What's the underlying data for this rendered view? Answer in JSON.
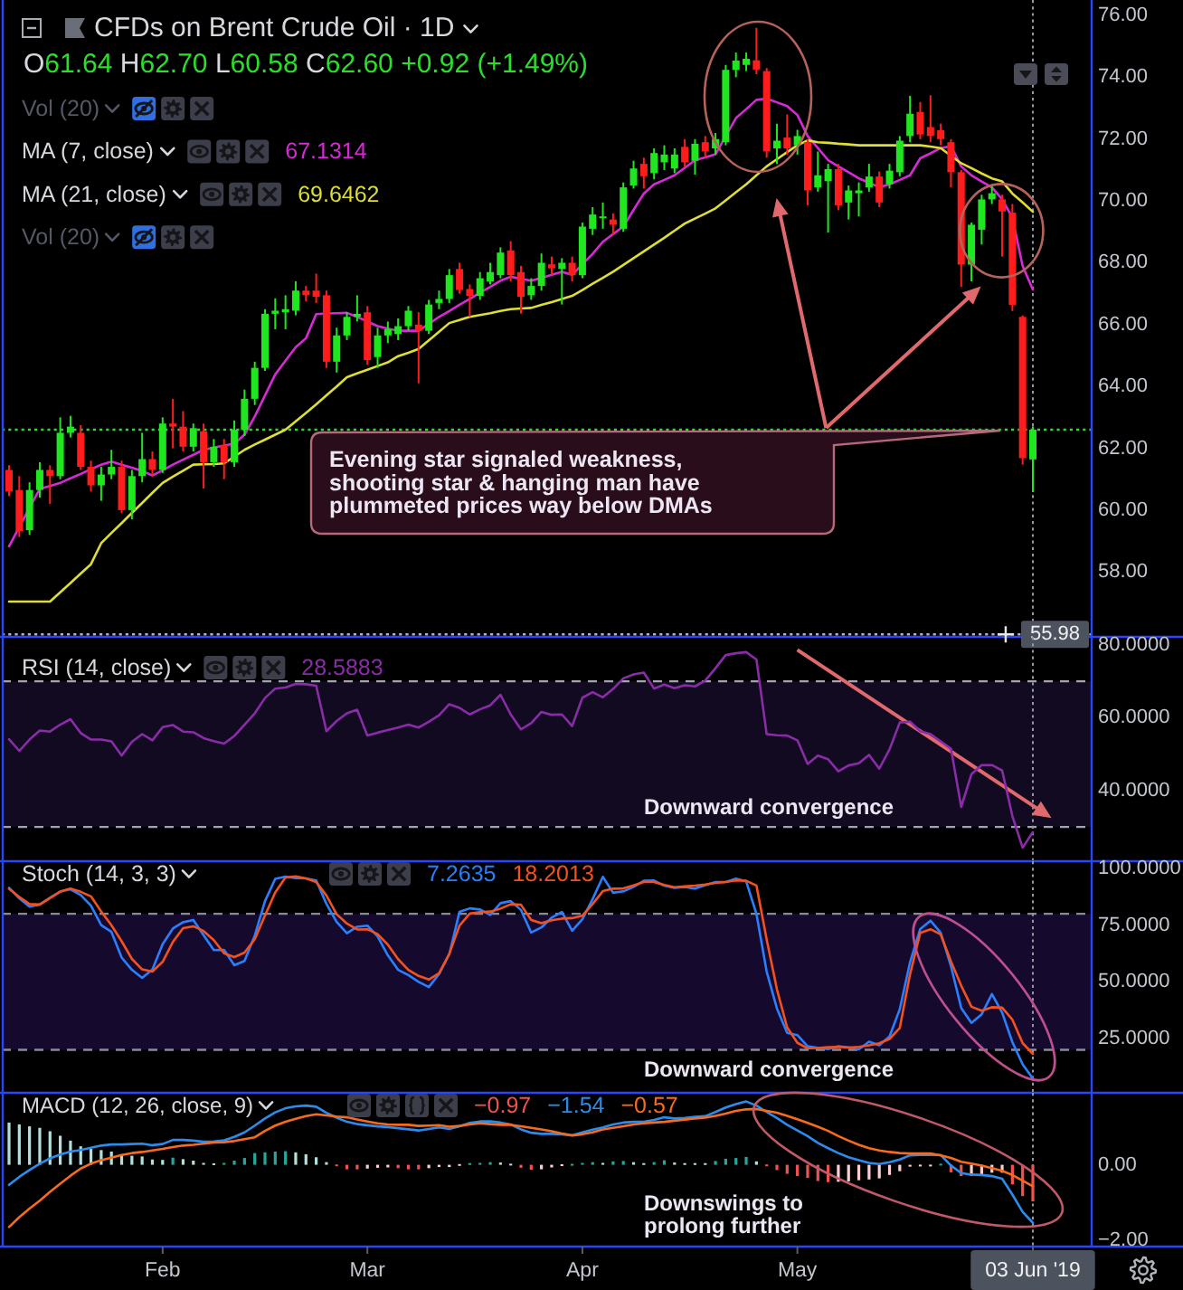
{
  "chart_data": [
    {
      "type": "candlestick",
      "title": "CFDs on Brent Crude Oil · 1D",
      "subtitle": "O61.64 H62.70 L60.58 C62.60 +0.92 (+1.49%)",
      "tick_labels": "y",
      "categories": [
        null,
        null,
        null,
        null,
        null,
        null,
        null,
        null,
        null,
        null,
        null,
        null,
        null,
        null,
        null,
        "Feb",
        null,
        null,
        null,
        null,
        null,
        null,
        null,
        null,
        null,
        null,
        null,
        null,
        null,
        null,
        null,
        null,
        null,
        null,
        null,
        "Mar",
        null,
        null,
        null,
        null,
        null,
        null,
        null,
        null,
        null,
        null,
        null,
        null,
        null,
        null,
        null,
        null,
        null,
        null,
        null,
        null,
        "Apr",
        null,
        null,
        null,
        null,
        null,
        null,
        null,
        null,
        null,
        null,
        null,
        null,
        null,
        null,
        null,
        null,
        null,
        null,
        null,
        null,
        "May",
        null,
        null,
        null,
        null,
        null,
        null,
        null,
        null,
        null,
        null,
        null,
        null,
        null,
        null,
        null,
        null,
        null,
        null,
        null,
        null,
        null,
        null,
        "03 Jun '19"
      ],
      "ohlc": [
        [
          61.3,
          61.45,
          60.45,
          60.6
        ],
        [
          60.65,
          61.1,
          59.13,
          59.32
        ],
        [
          59.35,
          60.9,
          59.2,
          60.65
        ],
        [
          60.65,
          61.55,
          60.4,
          61.3
        ],
        [
          61.3,
          61.45,
          60.2,
          61.1
        ],
        [
          61.1,
          63.0,
          61.0,
          62.5
        ],
        [
          62.5,
          63.05,
          62.35,
          62.7
        ],
        [
          62.5,
          62.75,
          61.3,
          61.4
        ],
        [
          61.4,
          61.6,
          60.6,
          60.8
        ],
        [
          60.8,
          61.4,
          60.3,
          61.15
        ],
        [
          61.15,
          61.95,
          61.0,
          61.4
        ],
        [
          61.4,
          61.6,
          59.9,
          60.0
        ],
        [
          60.0,
          61.3,
          59.7,
          61.1
        ],
        [
          61.1,
          62.5,
          60.9,
          61.65
        ],
        [
          61.65,
          61.9,
          61.1,
          61.3
        ],
        [
          61.3,
          63.0,
          61.2,
          62.8
        ],
        [
          62.8,
          63.6,
          62.0,
          62.7
        ],
        [
          62.7,
          63.2,
          61.9,
          62.05
        ],
        [
          62.05,
          62.8,
          61.9,
          62.65
        ],
        [
          62.55,
          62.8,
          60.7,
          61.55
        ],
        [
          61.55,
          62.3,
          61.4,
          62.05
        ],
        [
          62.1,
          62.3,
          61.0,
          61.55
        ],
        [
          61.55,
          62.9,
          61.4,
          62.6
        ],
        [
          62.6,
          63.9,
          62.4,
          63.6
        ],
        [
          63.6,
          64.8,
          63.4,
          64.6
        ],
        [
          64.6,
          66.5,
          64.5,
          66.35
        ],
        [
          66.35,
          66.85,
          65.85,
          66.45
        ],
        [
          66.4,
          66.95,
          65.85,
          66.5
        ],
        [
          66.45,
          67.4,
          66.3,
          67.1
        ],
        [
          67.1,
          67.25,
          66.75,
          66.95
        ],
        [
          67.1,
          67.65,
          66.7,
          66.9
        ],
        [
          66.95,
          67.1,
          64.6,
          64.8
        ],
        [
          64.8,
          65.9,
          64.45,
          65.65
        ],
        [
          65.65,
          66.4,
          65.5,
          66.25
        ],
        [
          66.25,
          66.95,
          66.1,
          66.35
        ],
        [
          66.4,
          66.6,
          64.7,
          64.85
        ],
        [
          64.95,
          65.9,
          64.6,
          65.65
        ],
        [
          65.65,
          66.1,
          65.4,
          65.85
        ],
        [
          65.7,
          66.2,
          65.5,
          65.95
        ],
        [
          65.95,
          66.6,
          65.8,
          66.45
        ],
        [
          66.0,
          66.4,
          64.1,
          65.8
        ],
        [
          65.8,
          66.8,
          65.7,
          66.65
        ],
        [
          66.7,
          67.1,
          66.5,
          66.83
        ],
        [
          66.83,
          67.8,
          66.7,
          67.6
        ],
        [
          67.8,
          68.0,
          67.0,
          67.12
        ],
        [
          67.15,
          67.3,
          66.25,
          66.93
        ],
        [
          66.93,
          67.7,
          66.8,
          67.5
        ],
        [
          67.4,
          68.0,
          67.3,
          67.7
        ],
        [
          67.6,
          68.5,
          67.5,
          68.33
        ],
        [
          68.4,
          68.7,
          67.4,
          67.6
        ],
        [
          67.7,
          67.9,
          66.35,
          66.9
        ],
        [
          66.95,
          67.5,
          66.8,
          67.25
        ],
        [
          67.25,
          68.3,
          67.1,
          68.0
        ],
        [
          67.95,
          68.2,
          67.6,
          67.82
        ],
        [
          67.8,
          68.15,
          66.65,
          68.0
        ],
        [
          68.0,
          68.2,
          67.4,
          67.6
        ],
        [
          67.6,
          69.3,
          67.5,
          69.17
        ],
        [
          69.1,
          69.8,
          68.9,
          69.56
        ],
        [
          69.45,
          69.95,
          69.1,
          69.5
        ],
        [
          69.4,
          69.6,
          68.9,
          69.23
        ],
        [
          69.1,
          70.6,
          69.0,
          70.44
        ],
        [
          70.5,
          71.3,
          70.4,
          71.05
        ],
        [
          71.2,
          71.4,
          70.4,
          70.8
        ],
        [
          70.9,
          71.7,
          70.7,
          71.55
        ],
        [
          71.25,
          71.8,
          71.0,
          71.5
        ],
        [
          71.05,
          71.7,
          70.9,
          71.5
        ],
        [
          71.75,
          72.0,
          71.1,
          71.25
        ],
        [
          71.3,
          72.0,
          70.85,
          71.85
        ],
        [
          71.9,
          72.1,
          71.4,
          71.6
        ],
        [
          71.7,
          72.2,
          71.5,
          72.0
        ],
        [
          71.9,
          74.4,
          71.8,
          74.24
        ],
        [
          74.24,
          74.8,
          74.0,
          74.54
        ],
        [
          74.4,
          74.8,
          74.2,
          74.6
        ],
        [
          74.55,
          75.6,
          74.1,
          74.25
        ],
        [
          74.2,
          74.3,
          71.4,
          71.6
        ],
        [
          71.7,
          72.5,
          71.2,
          71.95
        ],
        [
          72.05,
          72.8,
          71.5,
          71.7
        ],
        [
          71.8,
          72.3,
          71.5,
          72.1
        ],
        [
          71.9,
          72.0,
          69.86,
          70.34
        ],
        [
          70.44,
          71.6,
          70.3,
          70.83
        ],
        [
          70.64,
          71.2,
          68.98,
          71.03
        ],
        [
          71.03,
          71.2,
          69.7,
          69.86
        ],
        [
          69.95,
          70.5,
          69.4,
          70.34
        ],
        [
          70.25,
          70.6,
          69.5,
          70.34
        ],
        [
          70.44,
          71.2,
          70.3,
          70.79
        ],
        [
          70.79,
          70.95,
          69.8,
          69.95
        ],
        [
          70.54,
          71.2,
          70.4,
          70.98
        ],
        [
          70.93,
          72.1,
          70.8,
          71.95
        ],
        [
          72.1,
          73.4,
          71.9,
          72.82
        ],
        [
          72.88,
          73.2,
          72.0,
          72.15
        ],
        [
          72.39,
          73.42,
          71.9,
          72.1
        ],
        [
          72.29,
          72.5,
          71.8,
          72.0
        ],
        [
          71.9,
          72.0,
          70.44,
          70.93
        ],
        [
          70.93,
          71.0,
          67.22,
          67.94
        ],
        [
          67.94,
          69.3,
          67.4,
          69.23
        ],
        [
          69.07,
          70.2,
          68.59,
          70.05
        ],
        [
          70.05,
          70.54,
          69.9,
          70.25
        ],
        [
          70.05,
          70.2,
          68.2,
          69.66
        ],
        [
          69.62,
          69.9,
          66.44,
          66.64
        ],
        [
          66.25,
          66.3,
          61.47,
          61.68
        ],
        [
          61.64,
          62.7,
          60.58,
          62.6
        ]
      ],
      "colors": [
        "#ff1c1c",
        "#ff1c1c",
        "#20e620",
        "#20e620",
        "#ff1c1c",
        "#20e620",
        "#20e620",
        "#ff1c1c",
        "#ff1c1c",
        "#20e620",
        "#20e620",
        "#ff1c1c",
        "#20e620",
        "#20e620",
        "#ff1c1c",
        "#20e620",
        "#ff1c1c",
        "#ff1c1c",
        "#20e620",
        "#ff1c1c",
        "#20e620",
        "#ff1c1c",
        "#20e620",
        "#20e620",
        "#20e620",
        "#20e620",
        "#20e620",
        "#20e620",
        "#20e620",
        "#ff1c1c",
        "#ff1c1c",
        "#ff1c1c",
        "#20e620",
        "#20e620",
        "#20e620",
        "#ff1c1c",
        "#20e620",
        "#20e620",
        "#20e620",
        "#20e620",
        "#ff1c1c",
        "#20e620",
        "#20e620",
        "#20e620",
        "#ff1c1c",
        "#ff1c1c",
        "#20e620",
        "#20e620",
        "#20e620",
        "#ff1c1c",
        "#ff1c1c",
        "#20e620",
        "#20e620",
        "#ff1c1c",
        "#20e620",
        "#ff1c1c",
        "#20e620",
        "#20e620",
        "#20e620",
        "#ff1c1c",
        "#20e620",
        "#20e620",
        "#ff1c1c",
        "#20e620",
        "#20e620",
        "#20e620",
        "#ff1c1c",
        "#20e620",
        "#ff1c1c",
        "#20e620",
        "#20e620",
        "#20e620",
        "#20e620",
        "#ff1c1c",
        "#ff1c1c",
        "#20e620",
        "#ff1c1c",
        "#20e620",
        "#ff1c1c",
        "#20e620",
        "#20e620",
        "#ff1c1c",
        "#20e620",
        "#20e620",
        "#20e620",
        "#ff1c1c",
        "#20e620",
        "#20e620",
        "#20e620",
        "#ff1c1c",
        "#ff1c1c",
        "#ff1c1c",
        "#ff1c1c",
        "#ff1c1c",
        "#20e620",
        "#20e620",
        "#20e620",
        "#ff1c1c",
        "#ff1c1c",
        "#ff1c1c",
        "#20e620"
      ],
      "series": [
        {
          "type": "line",
          "color": "#d62ad6",
          "values": [
            58.83,
            59.45,
            60.07,
            60.69,
            60.78,
            60.88,
            61.03,
            61.17,
            61.32,
            61.47,
            61.57,
            61.47,
            61.37,
            61.27,
            61.12,
            61.29,
            61.47,
            61.63,
            61.79,
            61.95,
            62.02,
            62.09,
            62.15,
            62.44,
            63.03,
            63.71,
            64.39,
            64.83,
            65.27,
            65.56,
            66.34,
            66.36,
            66.37,
            66.38,
            66.25,
            66.1,
            65.95,
            65.87,
            65.8,
            65.8,
            65.8,
            66.02,
            66.25,
            66.44,
            66.64,
            66.83,
            67.03,
            67.22,
            67.42,
            67.55,
            67.48,
            67.42,
            67.51,
            67.61,
            67.71,
            67.61,
            67.95,
            68.29,
            68.68,
            68.93,
            69.17,
            69.71,
            70.24,
            70.54,
            70.68,
            70.83,
            71.07,
            71.32,
            71.41,
            71.51,
            72.1,
            72.68,
            72.97,
            73.27,
            73.31,
            73.19,
            73.07,
            72.78,
            72.1,
            71.71,
            71.32,
            71.12,
            70.93,
            70.73,
            70.59,
            70.44,
            70.54,
            70.68,
            70.83,
            71.38,
            71.54,
            71.71,
            71.77,
            71.12,
            70.83,
            70.63,
            70.44,
            70.05,
            69.46,
            67.9,
            67.13
          ]
        },
        {
          "type": "line",
          "color": "#dede33",
          "values": [
            57.04,
            57.04,
            57.04,
            57.04,
            57.04,
            57.34,
            57.64,
            57.95,
            58.25,
            58.93,
            59.26,
            59.58,
            59.91,
            60.23,
            60.56,
            60.88,
            61.08,
            61.27,
            61.47,
            61.48,
            61.49,
            61.51,
            61.73,
            61.95,
            62.12,
            62.28,
            62.44,
            62.6,
            62.87,
            63.14,
            63.42,
            63.71,
            64.0,
            64.3,
            64.42,
            64.54,
            64.66,
            64.78,
            64.98,
            65.09,
            65.21,
            65.49,
            65.77,
            66.05,
            66.15,
            66.25,
            66.31,
            66.37,
            66.44,
            66.5,
            66.52,
            66.54,
            66.64,
            66.73,
            66.83,
            66.93,
            67.12,
            67.32,
            67.51,
            67.71,
            67.93,
            68.15,
            68.37,
            68.59,
            68.81,
            69.04,
            69.27,
            69.43,
            69.59,
            69.76,
            70.02,
            70.28,
            70.54,
            70.83,
            71.12,
            71.35,
            71.58,
            71.8,
            71.96,
            71.9,
            71.88,
            71.85,
            71.83,
            71.8,
            71.8,
            71.8,
            71.8,
            71.8,
            71.8,
            71.8,
            71.76,
            71.71,
            71.46,
            71.22,
            71.06,
            70.89,
            70.73,
            70.63,
            70.24,
            69.95,
            69.65
          ]
        }
      ],
      "ylim": [
        55.9,
        76.5
      ],
      "yticks": [
        {
          "value": 58,
          "label": "58.00"
        },
        {
          "value": 60,
          "label": "60.00"
        },
        {
          "value": 62,
          "label": "62.00"
        },
        {
          "value": 64,
          "label": "64.00"
        },
        {
          "value": 66,
          "label": "66.00"
        },
        {
          "value": 68,
          "label": "68.00"
        },
        {
          "value": 70,
          "label": "70.00"
        },
        {
          "value": 72,
          "label": "72.00"
        },
        {
          "value": 74,
          "label": "74.00"
        },
        {
          "value": 76,
          "label": "76.00"
        }
      ],
      "ref_lines": [
        {
          "axis": "y",
          "value": 62.6,
          "color": "#3ad13a",
          "line_style": "dotted"
        },
        {
          "axis": "y",
          "value": 55.98,
          "label": "55.98",
          "color": "#b4b7bf",
          "line_style": "dotted"
        },
        {
          "axis": "x",
          "value": "03 Jun '19",
          "color": "#9598a1",
          "line_style": "dotted"
        }
      ],
      "annotations": [
        "Vol (20)",
        "MA (7, close)",
        "67.1314",
        "MA (21, close)",
        "69.6462",
        "Vol (20)",
        "Evening star signaled weakness, shooting star & hanging man have plummeted prices way below DMAs"
      ]
    },
    {
      "type": "line",
      "title": "RSI (14, close)",
      "tick_labels": "y",
      "categories": [
        null,
        null,
        null,
        null,
        null,
        null,
        null,
        null,
        null,
        null,
        null,
        null,
        null,
        null,
        null,
        "Feb",
        null,
        null,
        null,
        null,
        null,
        null,
        null,
        null,
        null,
        null,
        null,
        null,
        null,
        null,
        null,
        null,
        null,
        null,
        null,
        "Mar",
        null,
        null,
        null,
        null,
        null,
        null,
        null,
        null,
        null,
        null,
        null,
        null,
        null,
        null,
        null,
        null,
        null,
        null,
        null,
        null,
        "Apr",
        null,
        null,
        null,
        null,
        null,
        null,
        null,
        null,
        null,
        null,
        null,
        null,
        null,
        null,
        null,
        null,
        null,
        null,
        null,
        null,
        "May",
        null,
        null,
        null,
        null,
        null,
        null,
        null,
        null,
        null,
        null,
        null,
        null,
        null,
        null,
        null,
        null,
        null,
        null,
        null,
        null,
        null,
        null,
        "03 Jun '19"
      ],
      "series": [
        {
          "color": "#8a2ca8",
          "values": [
            54.1,
            50.9,
            54.0,
            56.5,
            56.2,
            58.1,
            59.6,
            55.8,
            54.0,
            54.0,
            53.5,
            49.6,
            53.4,
            55.5,
            53.8,
            57.4,
            58.0,
            56.2,
            56.0,
            54.4,
            53.6,
            52.9,
            55.0,
            58.1,
            61.2,
            65.4,
            68.0,
            68.3,
            69.3,
            69.2,
            68.8,
            56.3,
            59.1,
            61.2,
            62.2,
            55.1,
            55.9,
            56.6,
            57.3,
            58.1,
            57.3,
            58.9,
            60.7,
            63.7,
            62.7,
            60.9,
            62.3,
            63.4,
            66.3,
            60.9,
            56.8,
            58.5,
            61.6,
            60.8,
            60.9,
            57.7,
            65.5,
            67.0,
            65.6,
            67.9,
            70.8,
            71.9,
            72.4,
            68.0,
            69.1,
            68.1,
            68.9,
            68.6,
            70.2,
            73.6,
            77.2,
            77.7,
            78.0,
            76.0,
            55.5,
            55.2,
            55.1,
            53.8,
            47.3,
            49.6,
            48.6,
            45.3,
            46.9,
            47.5,
            49.8,
            46.0,
            51.3,
            58.7,
            58.9,
            56.3,
            55.5,
            53.5,
            51.5,
            35.5,
            44.5,
            47.0,
            47.0,
            45.5,
            33.0,
            24.3,
            28.6
          ]
        }
      ],
      "ylim": [
        20.6,
        82.2
      ],
      "yticks": [
        {
          "value": 40,
          "label": "40.0000"
        },
        {
          "value": 60,
          "label": "60.0000"
        },
        {
          "value": 80,
          "label": "80.0000"
        }
      ],
      "bands": [
        {
          "axis": "y",
          "from": 30,
          "to": 70,
          "color": "#120a20"
        }
      ],
      "ref_lines": [
        {
          "axis": "y",
          "value": 70,
          "color": "#a4a4ae",
          "line_style": "dashed"
        },
        {
          "axis": "y",
          "value": 30,
          "color": "#a4a4ae",
          "line_style": "dashed"
        },
        {
          "axis": "x",
          "value": "03 Jun '19",
          "color": "#9598a1",
          "line_style": "dotted"
        }
      ],
      "annotations": [
        "28.5883",
        "Downward convergence"
      ]
    },
    {
      "type": "line",
      "title": "Stoch (14, 3, 3)",
      "tick_labels": "y",
      "categories": [
        null,
        null,
        null,
        null,
        null,
        null,
        null,
        null,
        null,
        null,
        null,
        null,
        null,
        null,
        null,
        "Feb",
        null,
        null,
        null,
        null,
        null,
        null,
        null,
        null,
        null,
        null,
        null,
        null,
        null,
        null,
        null,
        null,
        null,
        null,
        null,
        "Mar",
        null,
        null,
        null,
        null,
        null,
        null,
        null,
        null,
        null,
        null,
        null,
        null,
        null,
        null,
        null,
        null,
        null,
        null,
        null,
        null,
        "Apr",
        null,
        null,
        null,
        null,
        null,
        null,
        null,
        null,
        null,
        null,
        null,
        null,
        null,
        null,
        null,
        null,
        null,
        null,
        null,
        null,
        "May",
        null,
        null,
        null,
        null,
        null,
        null,
        null,
        null,
        null,
        null,
        null,
        null,
        null,
        null,
        null,
        null,
        null,
        null,
        null,
        null,
        null,
        null,
        "03 Jun '19"
      ],
      "series": [
        {
          "color": "#2a7fff",
          "values": [
            91.5,
            86.8,
            83.2,
            84.1,
            87.1,
            89.8,
            90.8,
            88.3,
            83.6,
            75.0,
            72.0,
            60.7,
            55.3,
            51.7,
            55.4,
            66.6,
            73.5,
            76.3,
            77.3,
            70.6,
            64.0,
            64.1,
            57.3,
            59.2,
            70.4,
            85.6,
            95.4,
            96.4,
            95.7,
            95.6,
            94.7,
            84.4,
            76.4,
            71.4,
            74.3,
            74.8,
            70.0,
            61.7,
            55.3,
            53.0,
            50.0,
            47.7,
            53.4,
            62.1,
            80.9,
            82.4,
            81.9,
            79.5,
            84.7,
            85.6,
            81.7,
            71.7,
            74.0,
            78.3,
            80.8,
            72.5,
            77.6,
            86.5,
            96.3,
            89.3,
            89.9,
            91.9,
            94.6,
            94.7,
            92.4,
            91.4,
            91.8,
            91.1,
            92.6,
            94.0,
            94.0,
            95.5,
            94.3,
            80.0,
            54.5,
            38.3,
            27.5,
            26.5,
            21.6,
            20.9,
            20.3,
            21.6,
            21.1,
            20.2,
            23.6,
            22.0,
            25.9,
            37.9,
            58.6,
            73.3,
            77.0,
            71.6,
            56.9,
            38.5,
            31.9,
            35.7,
            44.6,
            36.4,
            23.4,
            13.6,
            7.3
          ]
        },
        {
          "color": "#f4511e",
          "values": [
            91.0,
            87.4,
            84.3,
            84.1,
            86.9,
            89.8,
            91.1,
            89.7,
            87.7,
            81.0,
            75.0,
            67.9,
            60.1,
            55.5,
            54.5,
            58.8,
            67.6,
            73.7,
            74.5,
            72.4,
            68.4,
            62.6,
            60.9,
            62.9,
            68.8,
            79.3,
            89.4,
            96.0,
            96.5,
            95.6,
            94.0,
            88.1,
            79.8,
            75.7,
            73.1,
            73.2,
            71.0,
            66.4,
            60.0,
            55.3,
            52.6,
            51.0,
            53.8,
            62.4,
            74.8,
            80.1,
            80.7,
            81.0,
            82.3,
            84.2,
            84.0,
            77.3,
            75.9,
            77.2,
            77.9,
            78.1,
            79.2,
            84.3,
            90.0,
            91.1,
            91.2,
            92.5,
            94.0,
            94.0,
            92.7,
            91.7,
            92.1,
            92.4,
            92.9,
            93.6,
            94.0,
            94.7,
            94.6,
            92.5,
            68.7,
            46.7,
            29.9,
            23.1,
            20.7,
            20.8,
            21.2,
            21.3,
            21.0,
            21.3,
            22.0,
            22.9,
            24.8,
            29.6,
            53.3,
            71.6,
            73.2,
            70.9,
            59.0,
            48.3,
            39.0,
            37.3,
            38.8,
            38.6,
            33.3,
            23.0,
            18.2
          ]
        }
      ],
      "ylim": [
        1.06,
        103.2
      ],
      "yticks": [
        {
          "value": 25,
          "label": "25.0000"
        },
        {
          "value": 50,
          "label": "50.0000"
        },
        {
          "value": 75,
          "label": "75.0000"
        },
        {
          "value": 100,
          "label": "100.0000"
        }
      ],
      "bands": [
        {
          "axis": "y",
          "from": 20,
          "to": 80,
          "color": "#150a2e"
        }
      ],
      "ref_lines": [
        {
          "axis": "y",
          "value": 80,
          "color": "#8a8a94",
          "line_style": "dashed"
        },
        {
          "axis": "y",
          "value": 20,
          "color": "#8a8a94",
          "line_style": "dashed"
        },
        {
          "axis": "x",
          "value": "03 Jun '19",
          "color": "#9598a1",
          "line_style": "dotted"
        }
      ],
      "annotations": [
        "7.2635",
        "18.2013",
        "Downward convergence"
      ]
    },
    {
      "type": "line",
      "title": "MACD (12, 26, close, 9)",
      "categories": [
        null,
        null,
        null,
        null,
        null,
        null,
        null,
        null,
        null,
        null,
        null,
        null,
        null,
        null,
        null,
        "Feb",
        null,
        null,
        null,
        null,
        null,
        null,
        null,
        null,
        null,
        null,
        null,
        null,
        null,
        null,
        null,
        null,
        null,
        null,
        null,
        "Mar",
        null,
        null,
        null,
        null,
        null,
        null,
        null,
        null,
        null,
        null,
        null,
        null,
        null,
        null,
        null,
        null,
        null,
        null,
        null,
        null,
        "Apr",
        null,
        null,
        null,
        null,
        null,
        null,
        null,
        null,
        null,
        null,
        null,
        null,
        null,
        null,
        null,
        null,
        null,
        null,
        null,
        null,
        "May",
        null,
        null,
        null,
        null,
        null,
        null,
        null,
        null,
        null,
        null,
        null,
        null,
        null,
        null,
        null,
        null,
        null,
        null,
        null,
        null,
        null,
        null,
        "03 Jun '19"
      ],
      "series": [
        {
          "type": "bar",
          "colors": [
            "#b2dfdb",
            "#b2dfdb",
            "#b2dfdb",
            "#b2dfdb",
            "#b2dfdb",
            "#b2dfdb",
            "#b2dfdb",
            "#b2dfdb",
            "#b2dfdb",
            "#b2dfdb",
            "#b2dfdb",
            "#b2dfdb",
            "#b2dfdb",
            "#b2dfdb",
            "#b2dfdb",
            "#b2dfdb",
            "#26a69a",
            "#b2dfdb",
            "#b2dfdb",
            "#b2dfdb",
            "#b2dfdb",
            "#26a69a",
            "#26a69a",
            "#26a69a",
            "#26a69a",
            "#26a69a",
            "#26a69a",
            "#26a69a",
            "#b2dfdb",
            "#b2dfdb",
            "#b2dfdb",
            "#b2dfdb",
            "#ef5350",
            "#ef5350",
            "#ef5350",
            "#ffcdd2",
            "#ffcdd2",
            "#ffcdd2",
            "#ef5350",
            "#ef5350",
            "#ef5350",
            "#ffcdd2",
            "#ffcdd2",
            "#ffcdd2",
            "#ffcdd2",
            "#26a69a",
            "#26a69a",
            "#26a69a",
            "#b2dfdb",
            "#b2dfdb",
            "#ef5350",
            "#ef5350",
            "#ffcdd2",
            "#ffcdd2",
            "#ffcdd2",
            "#26a69a",
            "#26a69a",
            "#26a69a",
            "#b2dfdb",
            "#26a69a",
            "#26a69a",
            "#b2dfdb",
            "#b2dfdb",
            "#26a69a",
            "#26a69a",
            "#b2dfdb",
            "#b2dfdb",
            "#b2dfdb",
            "#b2dfdb",
            "#26a69a",
            "#26a69a",
            "#26a69a",
            "#26a69a",
            "#b2dfdb",
            "#ef5350",
            "#ef5350",
            "#ef5350",
            "#ef5350",
            "#ef5350",
            "#ef5350",
            "#ef5350",
            "#ffcdd2",
            "#ffcdd2",
            "#ffcdd2",
            "#ffcdd2",
            "#ffcdd2",
            "#ffcdd2",
            "#ffcdd2",
            "#ffcdd2",
            "#ffcdd2",
            "#ffcdd2",
            "#26a69a",
            "#ef5350",
            "#ef5350",
            "#ffcdd2",
            "#ffcdd2",
            "#ffcdd2",
            "#ffcdd2",
            "#ef5350",
            "#ef5350",
            "#ef5350"
          ],
          "values": [
            1.12,
            1.07,
            1.02,
            0.98,
            0.89,
            0.77,
            0.64,
            0.49,
            0.42,
            0.39,
            0.35,
            0.28,
            0.24,
            0.22,
            0.14,
            0.13,
            0.19,
            0.15,
            0.11,
            0.05,
            0.03,
            0.05,
            0.11,
            0.18,
            0.31,
            0.33,
            0.35,
            0.36,
            0.33,
            0.28,
            0.2,
            0.07,
            -0.03,
            -0.12,
            -0.12,
            -0.1,
            -0.08,
            -0.07,
            -0.09,
            -0.12,
            -0.12,
            -0.09,
            -0.06,
            -0.06,
            -0.01,
            0.04,
            0.05,
            0.07,
            0.06,
            0.01,
            -0.08,
            -0.13,
            -0.12,
            -0.07,
            -0.02,
            0.0,
            0.05,
            0.07,
            0.05,
            0.09,
            0.1,
            0.07,
            0.04,
            0.07,
            0.12,
            0.06,
            0.04,
            0.04,
            0.04,
            0.1,
            0.16,
            0.18,
            0.21,
            0.09,
            -0.03,
            -0.14,
            -0.24,
            -0.3,
            -0.35,
            -0.43,
            -0.46,
            -0.45,
            -0.44,
            -0.41,
            -0.39,
            -0.36,
            -0.27,
            -0.17,
            -0.05,
            -0.04,
            -0.04,
            0.01,
            -0.2,
            -0.3,
            -0.29,
            -0.25,
            -0.21,
            -0.21,
            -0.52,
            -0.83,
            -0.97
          ]
        },
        {
          "color": "#2b8ceb",
          "values": [
            -0.53,
            -0.32,
            -0.14,
            0.03,
            0.17,
            0.27,
            0.35,
            0.39,
            0.45,
            0.51,
            0.54,
            0.54,
            0.55,
            0.56,
            0.52,
            0.55,
            0.66,
            0.66,
            0.64,
            0.61,
            0.62,
            0.65,
            0.74,
            0.86,
            1.04,
            1.23,
            1.39,
            1.5,
            1.55,
            1.57,
            1.54,
            1.38,
            1.25,
            1.14,
            1.08,
            1.05,
            1.02,
            1.0,
            0.97,
            0.94,
            0.91,
            0.95,
            0.99,
            0.95,
            1.02,
            1.11,
            1.15,
            1.15,
            1.12,
            1.07,
            0.94,
            0.85,
            0.82,
            0.82,
            0.81,
            0.78,
            0.86,
            0.93,
            0.99,
            1.07,
            1.12,
            1.14,
            1.14,
            1.19,
            1.26,
            1.23,
            1.24,
            1.27,
            1.29,
            1.4,
            1.52,
            1.61,
            1.68,
            1.57,
            1.4,
            1.24,
            1.06,
            0.91,
            0.76,
            0.58,
            0.44,
            0.31,
            0.2,
            0.12,
            0.05,
            0.02,
            0.07,
            0.14,
            0.25,
            0.26,
            0.26,
            0.26,
            -0.02,
            -0.22,
            -0.26,
            -0.27,
            -0.3,
            -0.37,
            -0.79,
            -1.25,
            -1.54
          ]
        },
        {
          "color": "#f76b1c",
          "values": [
            -1.65,
            -1.39,
            -1.16,
            -0.95,
            -0.72,
            -0.5,
            -0.29,
            -0.1,
            0.03,
            0.12,
            0.19,
            0.26,
            0.31,
            0.34,
            0.38,
            0.42,
            0.47,
            0.51,
            0.53,
            0.56,
            0.59,
            0.6,
            0.63,
            0.68,
            0.73,
            0.9,
            1.04,
            1.14,
            1.22,
            1.29,
            1.34,
            1.31,
            1.28,
            1.26,
            1.2,
            1.15,
            1.1,
            1.07,
            1.06,
            1.06,
            1.03,
            1.04,
            1.05,
            1.01,
            1.03,
            1.07,
            1.1,
            1.08,
            1.06,
            1.06,
            1.02,
            0.98,
            0.94,
            0.89,
            0.83,
            0.78,
            0.81,
            0.86,
            0.94,
            0.98,
            1.02,
            1.07,
            1.1,
            1.12,
            1.14,
            1.17,
            1.2,
            1.23,
            1.25,
            1.3,
            1.36,
            1.43,
            1.47,
            1.48,
            1.43,
            1.38,
            1.3,
            1.21,
            1.11,
            1.01,
            0.9,
            0.76,
            0.64,
            0.53,
            0.44,
            0.38,
            0.34,
            0.31,
            0.3,
            0.3,
            0.3,
            0.25,
            0.18,
            0.08,
            0.03,
            -0.02,
            -0.09,
            -0.16,
            -0.27,
            -0.42,
            -0.57
          ]
        }
      ],
      "ylim": [
        -2.17,
        1.91
      ],
      "yticks": [
        {
          "value": -2,
          "label": "−2.00"
        },
        {
          "value": 0,
          "label": "0.00"
        }
      ],
      "ref_lines": [
        {
          "axis": "x",
          "value": "03 Jun '19",
          "color": "#9598a1",
          "line_style": "dotted"
        }
      ],
      "annotations": [
        "−0.97",
        "−1.54",
        "−0.57",
        "Downswings to prolong further"
      ]
    }
  ]
}
